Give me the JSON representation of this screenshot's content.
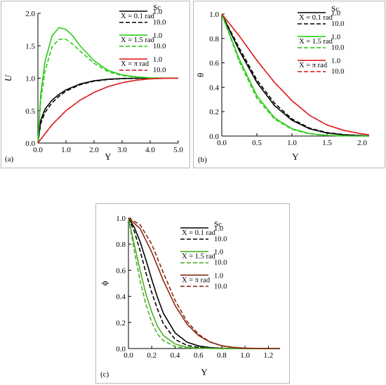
{
  "chart_data": [
    {
      "type": "line",
      "panel_label": "(a)",
      "xlabel": "Y",
      "ylabel": "U",
      "xlim": [
        0,
        5
      ],
      "ylim": [
        0,
        2
      ],
      "xticks": [
        "0.0",
        "1.0",
        "2.0",
        "3.0",
        "4.0",
        "5.0"
      ],
      "yticks": [
        "0.0",
        "0.5",
        "1.0",
        "1.5",
        "2.0"
      ],
      "legend_header": "Sc",
      "legend_placement": "top-right",
      "legend_groups": [
        {
          "label": "X = 0.1 rad",
          "color": "#000000",
          "sc": [
            "1.0",
            "10.0"
          ]
        },
        {
          "label": "X = 1.5 rad",
          "color": "#2ecc1a",
          "sc": [
            "1.0",
            "10.0"
          ]
        },
        {
          "label": "X = π rad",
          "color": "#e02020",
          "sc": [
            "1.0",
            "10.0"
          ]
        }
      ],
      "series": [
        {
          "color": "#000000",
          "dash": false,
          "x": [
            0,
            0.1,
            0.25,
            0.5,
            0.75,
            1.0,
            1.5,
            2.0,
            2.5,
            3.0,
            3.5,
            4.0,
            5.0
          ],
          "y": [
            0,
            0.35,
            0.52,
            0.66,
            0.75,
            0.82,
            0.91,
            0.96,
            0.985,
            0.995,
            1.0,
            1.0,
            1.0
          ]
        },
        {
          "color": "#000000",
          "dash": true,
          "x": [
            0,
            0.1,
            0.25,
            0.5,
            0.75,
            1.0,
            1.5,
            2.0,
            2.5,
            3.0,
            3.5,
            4.0,
            5.0
          ],
          "y": [
            0,
            0.3,
            0.47,
            0.62,
            0.72,
            0.8,
            0.9,
            0.955,
            0.98,
            0.993,
            0.998,
            1.0,
            1.0
          ]
        },
        {
          "color": "#2ecc1a",
          "dash": false,
          "x": [
            0,
            0.1,
            0.25,
            0.5,
            0.75,
            1.0,
            1.25,
            1.5,
            2.0,
            2.5,
            3.0,
            3.5,
            4.0,
            5.0
          ],
          "y": [
            0,
            0.75,
            1.25,
            1.65,
            1.78,
            1.75,
            1.65,
            1.5,
            1.27,
            1.12,
            1.05,
            1.02,
            1.005,
            1.0
          ]
        },
        {
          "color": "#2ecc1a",
          "dash": true,
          "x": [
            0,
            0.1,
            0.25,
            0.5,
            0.75,
            1.0,
            1.25,
            1.5,
            2.0,
            2.5,
            3.0,
            3.5,
            4.0,
            5.0
          ],
          "y": [
            0,
            0.65,
            1.1,
            1.48,
            1.6,
            1.6,
            1.52,
            1.42,
            1.23,
            1.1,
            1.04,
            1.015,
            1.005,
            1.0
          ]
        },
        {
          "color": "#e02020",
          "dash": false,
          "x": [
            0,
            0.5,
            1.0,
            1.5,
            2.0,
            2.5,
            3.0,
            3.5,
            4.0,
            4.5,
            5.0
          ],
          "y": [
            0,
            0.28,
            0.5,
            0.66,
            0.78,
            0.87,
            0.93,
            0.97,
            0.99,
            0.998,
            1.0
          ]
        },
        {
          "color": "#e02020",
          "dash": true,
          "x": [
            0,
            0.5,
            1.0,
            1.5,
            2.0,
            2.5,
            3.0,
            3.5,
            4.0,
            4.5,
            5.0
          ],
          "y": [
            0,
            0.28,
            0.5,
            0.66,
            0.78,
            0.87,
            0.93,
            0.97,
            0.99,
            0.998,
            1.0
          ]
        }
      ]
    },
    {
      "type": "line",
      "panel_label": "(b)",
      "xlabel": "Y",
      "ylabel": "θ",
      "xlim": [
        0,
        2.1
      ],
      "ylim": [
        0,
        1
      ],
      "xticks": [
        "0.0",
        "0.5",
        "1.0",
        "1.5",
        "2.0"
      ],
      "yticks": [
        "0.0",
        "0.2",
        "0.4",
        "0.6",
        "0.8",
        "1.0"
      ],
      "legend_header": "Sc",
      "legend_placement": "top-right",
      "legend_groups": [
        {
          "label": "X = 0.1 rad",
          "color": "#000000",
          "sc": [
            "1.0",
            "10.0"
          ]
        },
        {
          "label": "X = 1.5 rad",
          "color": "#2ecc1a",
          "sc": [
            "1.0",
            "10.0"
          ]
        },
        {
          "label": "X = π rad",
          "color": "#e02020",
          "sc": [
            "1.0",
            "10.0"
          ]
        }
      ],
      "series": [
        {
          "color": "#000000",
          "dash": false,
          "x": [
            0,
            0.25,
            0.5,
            0.75,
            1.0,
            1.25,
            1.5,
            1.75,
            2.0,
            2.1
          ],
          "y": [
            1.0,
            0.7,
            0.44,
            0.25,
            0.13,
            0.06,
            0.025,
            0.01,
            0.003,
            0.0
          ]
        },
        {
          "color": "#000000",
          "dash": true,
          "x": [
            0,
            0.25,
            0.5,
            0.75,
            1.0,
            1.25,
            1.5,
            1.75,
            2.0,
            2.1
          ],
          "y": [
            1.0,
            0.72,
            0.46,
            0.27,
            0.14,
            0.065,
            0.028,
            0.011,
            0.004,
            0.0
          ]
        },
        {
          "color": "#2ecc1a",
          "dash": false,
          "x": [
            0,
            0.25,
            0.5,
            0.75,
            1.0,
            1.25,
            1.5,
            1.75,
            2.0,
            2.1
          ],
          "y": [
            1.0,
            0.63,
            0.33,
            0.15,
            0.06,
            0.02,
            0.006,
            0.002,
            0.0,
            0.0
          ]
        },
        {
          "color": "#2ecc1a",
          "dash": true,
          "x": [
            0,
            0.25,
            0.5,
            0.75,
            1.0,
            1.25,
            1.5,
            1.75,
            2.0,
            2.1
          ],
          "y": [
            1.0,
            0.61,
            0.31,
            0.14,
            0.055,
            0.018,
            0.005,
            0.001,
            0.0,
            0.0
          ]
        },
        {
          "color": "#e02020",
          "dash": false,
          "x": [
            0,
            0.25,
            0.5,
            0.75,
            1.0,
            1.25,
            1.5,
            1.75,
            2.0,
            2.1
          ],
          "y": [
            1.0,
            0.82,
            0.62,
            0.44,
            0.29,
            0.17,
            0.09,
            0.045,
            0.018,
            0.01
          ]
        },
        {
          "color": "#e02020",
          "dash": true,
          "x": [
            0,
            0.25,
            0.5,
            0.75,
            1.0,
            1.25,
            1.5,
            1.75,
            2.0,
            2.1
          ],
          "y": [
            1.0,
            0.82,
            0.62,
            0.44,
            0.29,
            0.17,
            0.09,
            0.045,
            0.018,
            0.01
          ]
        }
      ]
    },
    {
      "type": "line",
      "panel_label": "(c)",
      "xlabel": "Y",
      "ylabel": "ϕ",
      "xlim": [
        0,
        1.3
      ],
      "ylim": [
        0,
        1
      ],
      "xticks": [
        "0.0",
        "0.2",
        "0.4",
        "0.6",
        "0.8",
        "1.0",
        "1.2"
      ],
      "yticks": [
        "0.0",
        "0.2",
        "0.4",
        "0.6",
        "0.8",
        "1.0"
      ],
      "legend_header": "Sc",
      "legend_placement": "top-right",
      "legend_groups": [
        {
          "label": "X = 0.1 rad",
          "color": "#000000",
          "sc": [
            "1.0",
            "10.0"
          ]
        },
        {
          "label": "X = 1.5 rad",
          "color": "#4caf25",
          "sc": [
            "1.0",
            "10.0"
          ]
        },
        {
          "label": "X = π rad",
          "color": "#8b2a10",
          "sc": [
            "1.0",
            "10.0"
          ]
        }
      ],
      "series": [
        {
          "color": "#000000",
          "dash": false,
          "x": [
            0,
            0.05,
            0.1,
            0.15,
            0.2,
            0.25,
            0.3,
            0.4,
            0.5,
            0.6,
            0.7,
            0.8,
            1.0,
            1.3
          ],
          "y": [
            1.0,
            0.93,
            0.82,
            0.68,
            0.53,
            0.39,
            0.27,
            0.12,
            0.05,
            0.02,
            0.007,
            0.002,
            0.0,
            0.0
          ]
        },
        {
          "color": "#000000",
          "dash": true,
          "x": [
            0,
            0.05,
            0.1,
            0.15,
            0.2,
            0.25,
            0.3,
            0.4,
            0.5,
            0.6,
            0.7,
            0.8,
            1.0,
            1.3
          ],
          "y": [
            1.0,
            0.9,
            0.75,
            0.58,
            0.43,
            0.3,
            0.19,
            0.07,
            0.025,
            0.008,
            0.002,
            0.0,
            0.0,
            0.0
          ]
        },
        {
          "color": "#4caf25",
          "dash": false,
          "x": [
            0,
            0.05,
            0.1,
            0.15,
            0.2,
            0.25,
            0.3,
            0.4,
            0.5,
            0.6,
            0.8,
            1.0,
            1.3
          ],
          "y": [
            1.0,
            0.8,
            0.6,
            0.42,
            0.28,
            0.17,
            0.1,
            0.035,
            0.01,
            0.003,
            0.0,
            0.0,
            0.0
          ]
        },
        {
          "color": "#4caf25",
          "dash": true,
          "x": [
            0,
            0.05,
            0.1,
            0.15,
            0.2,
            0.25,
            0.3,
            0.4,
            0.5,
            0.6,
            0.8,
            1.0,
            1.3
          ],
          "y": [
            1.0,
            0.75,
            0.52,
            0.34,
            0.2,
            0.11,
            0.06,
            0.015,
            0.004,
            0.001,
            0.0,
            0.0,
            0.0
          ]
        },
        {
          "color": "#8b2a10",
          "dash": false,
          "x": [
            0,
            0.1,
            0.2,
            0.3,
            0.4,
            0.5,
            0.6,
            0.7,
            0.8,
            0.9,
            1.0,
            1.1,
            1.3
          ],
          "y": [
            1.0,
            0.92,
            0.74,
            0.52,
            0.33,
            0.19,
            0.1,
            0.05,
            0.022,
            0.009,
            0.003,
            0.001,
            0.0
          ]
        },
        {
          "color": "#8b2a10",
          "dash": true,
          "x": [
            0,
            0.1,
            0.2,
            0.3,
            0.4,
            0.5,
            0.6,
            0.7,
            0.8,
            0.9,
            1.0,
            1.1,
            1.3
          ],
          "y": [
            1.0,
            0.95,
            0.8,
            0.58,
            0.37,
            0.21,
            0.11,
            0.05,
            0.02,
            0.007,
            0.002,
            0.0,
            0.0
          ]
        }
      ]
    }
  ]
}
